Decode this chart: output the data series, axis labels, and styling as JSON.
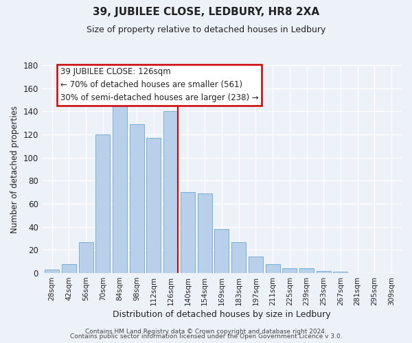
{
  "title": "39, JUBILEE CLOSE, LEDBURY, HR8 2XA",
  "subtitle": "Size of property relative to detached houses in Ledbury",
  "xlabel": "Distribution of detached houses by size in Ledbury",
  "ylabel": "Number of detached properties",
  "bar_labels": [
    "28sqm",
    "42sqm",
    "56sqm",
    "70sqm",
    "84sqm",
    "98sqm",
    "112sqm",
    "126sqm",
    "140sqm",
    "154sqm",
    "169sqm",
    "183sqm",
    "197sqm",
    "211sqm",
    "225sqm",
    "239sqm",
    "253sqm",
    "267sqm",
    "281sqm",
    "295sqm",
    "309sqm"
  ],
  "bar_heights": [
    3,
    8,
    27,
    120,
    145,
    129,
    117,
    140,
    70,
    69,
    38,
    27,
    14,
    8,
    4,
    4,
    2,
    1,
    0,
    0,
    0
  ],
  "bar_color": "#b8d0ea",
  "bar_edge_color": "#7aafd4",
  "highlight_index": 7,
  "highlight_line_color": "#cc0000",
  "ylim": [
    0,
    180
  ],
  "yticks": [
    0,
    20,
    40,
    60,
    80,
    100,
    120,
    140,
    160,
    180
  ],
  "annotation_title": "39 JUBILEE CLOSE: 126sqm",
  "annotation_line1": "← 70% of detached houses are smaller (561)",
  "annotation_line2": "30% of semi-detached houses are larger (238) →",
  "annotation_box_color": "#ffffff",
  "annotation_box_edge": "#cc0000",
  "footer1": "Contains HM Land Registry data © Crown copyright and database right 2024.",
  "footer2": "Contains public sector information licensed under the Open Government Licence v 3.0.",
  "background_color": "#edf2f9"
}
